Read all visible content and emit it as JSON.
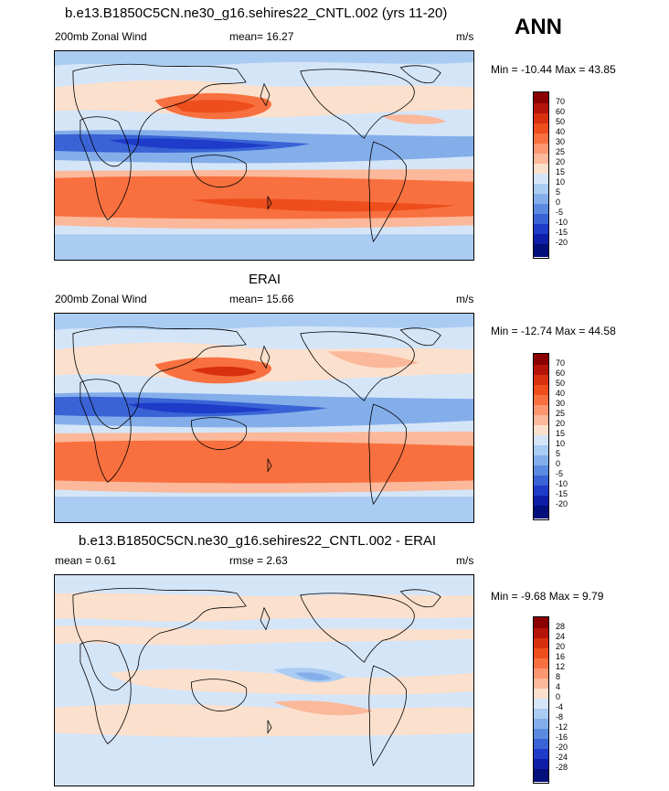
{
  "season": "ANN",
  "panels": [
    {
      "title": "b.e13.B1850C5CN.ne30_g16.sehires22_CNTL.002 (yrs 11-20)",
      "left_label": "200mb Zonal Wind",
      "center_label": "mean=  16.27",
      "right_label": "m/s",
      "minmax": "Min = -10.44 Max =  43.85",
      "levels": [
        "70",
        "60",
        "50",
        "40",
        "30",
        "25",
        "20",
        "15",
        "10",
        "5",
        "0",
        "-5",
        "-10",
        "-15",
        "-20"
      ]
    },
    {
      "title": "ERAI",
      "left_label": "200mb Zonal Wind",
      "center_label": "mean=  15.66",
      "right_label": "m/s",
      "minmax": "Min = -12.74 Max =  44.58",
      "levels": [
        "70",
        "60",
        "50",
        "40",
        "30",
        "25",
        "20",
        "15",
        "10",
        "5",
        "0",
        "-5",
        "-10",
        "-15",
        "-20"
      ]
    },
    {
      "title": "b.e13.B1850C5CN.ne30_g16.sehires22_CNTL.002 - ERAI",
      "left_label": "mean =   0.61",
      "center_label": "rmse =   2.63",
      "right_label": "m/s",
      "minmax": "Min =  -9.68 Max =   9.79",
      "levels": [
        "28",
        "24",
        "20",
        "16",
        "12",
        "8",
        "4",
        "0",
        "-4",
        "-8",
        "-12",
        "-16",
        "-20",
        "-24",
        "-28"
      ]
    }
  ],
  "colors": {
    "colorbar": [
      "#8b0000",
      "#b5140a",
      "#d8300f",
      "#ee4d1c",
      "#f8703f",
      "#fc9670",
      "#fbb89a",
      "#fbe0cd",
      "#d5e5f8",
      "#aacbf2",
      "#84aeea",
      "#5b8be0",
      "#3a63d6",
      "#1f3bc9",
      "#0e1ea8",
      "#030f7a"
    ]
  }
}
